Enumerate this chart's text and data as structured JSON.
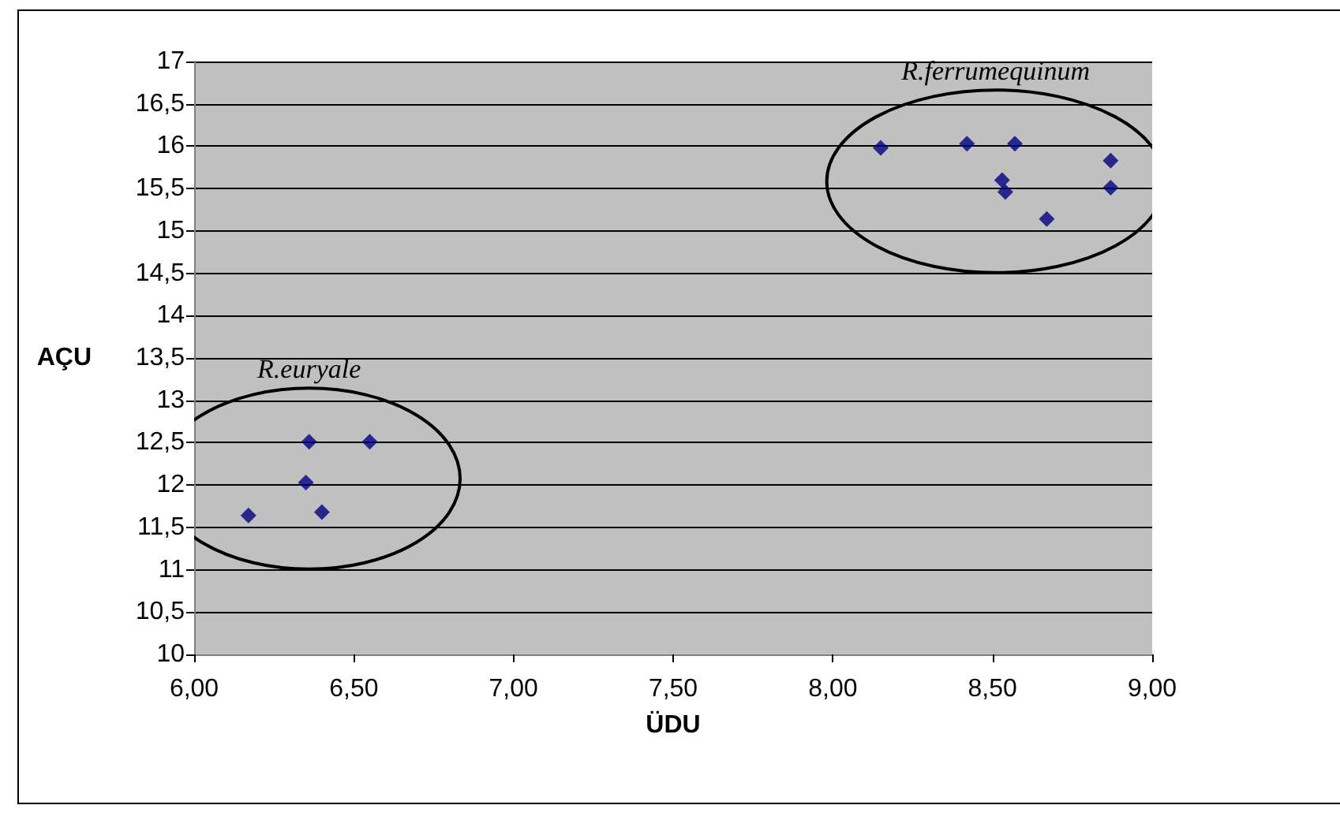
{
  "chart_data": {
    "type": "scatter",
    "xlabel": "ÜDU",
    "ylabel": "AÇU",
    "series": [
      {
        "color": "#000080",
        "x": [
          6.17,
          6.36,
          6.55,
          6.35,
          6.4
        ],
        "values": [
          11.64,
          12.51,
          12.51,
          12.03,
          11.68
        ]
      },
      {
        "color": "#000080",
        "x": [
          8.15,
          8.42,
          8.57,
          8.53,
          8.54,
          8.87,
          8.87,
          8.67
        ],
        "values": [
          15.98,
          16.03,
          16.03,
          15.6,
          15.46,
          15.83,
          15.51,
          15.14
        ]
      }
    ],
    "annotations": [
      "R.euryale",
      "R.ferrumequinum"
    ],
    "xlim": [
      6,
      9
    ],
    "xticks": [
      {
        "value": 6,
        "label": "6,00"
      },
      {
        "value": 6.5,
        "label": "6,50"
      },
      {
        "value": 7,
        "label": "7,00"
      },
      {
        "value": 7.5,
        "label": "7,50"
      },
      {
        "value": 8,
        "label": "8,00"
      },
      {
        "value": 8.5,
        "label": "8,50"
      },
      {
        "value": 9,
        "label": "9,00"
      }
    ],
    "ylim": [
      10,
      17
    ],
    "yticks": [
      10,
      {
        "value": 10.5,
        "label": "10,5"
      },
      11,
      {
        "value": 11.5,
        "label": "11,5"
      },
      12,
      {
        "value": 12.5,
        "label": "12,5"
      },
      13,
      {
        "value": 13.5,
        "label": "13,5"
      },
      14,
      {
        "value": 14.5,
        "label": "14,5"
      },
      15,
      {
        "value": 15.5,
        "label": "15,5"
      },
      16,
      {
        "value": 16.5,
        "label": "16,5"
      },
      17
    ],
    "grid": "y",
    "marker": "diamond"
  }
}
